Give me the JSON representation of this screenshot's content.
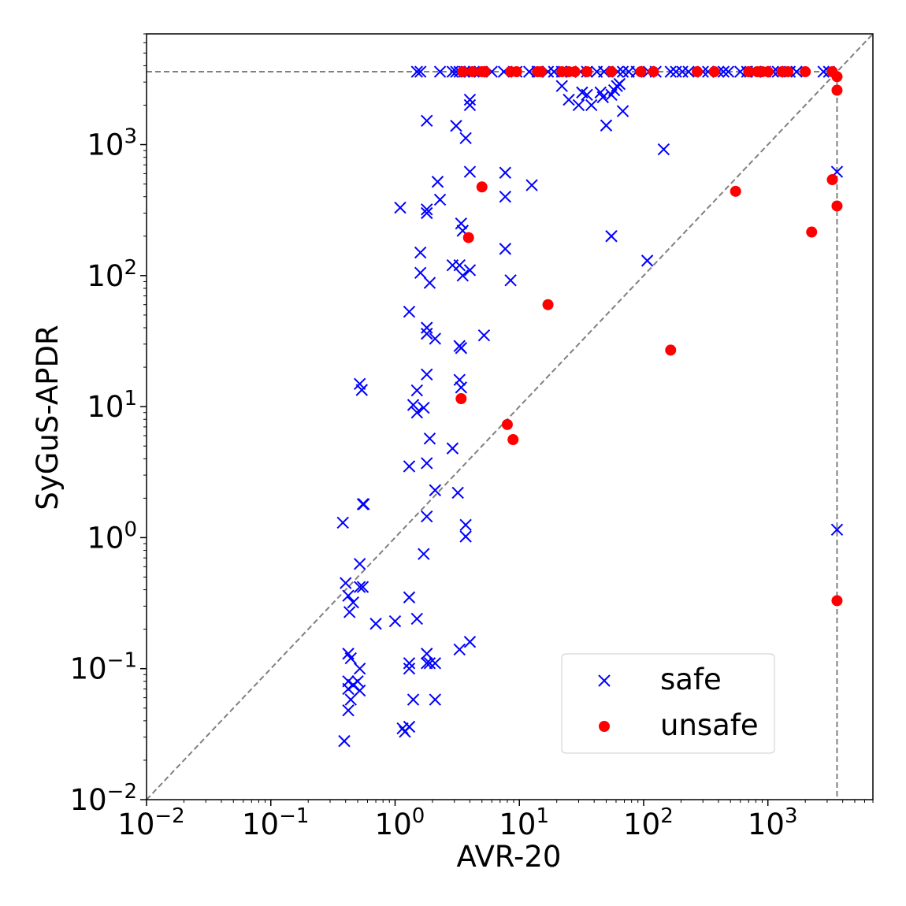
{
  "chart_data": {
    "type": "scatter",
    "xlabel": "AVR-20",
    "ylabel": "SyGuS-APDR",
    "xscale": "log",
    "yscale": "log",
    "xlim": [
      0.01,
      7000
    ],
    "ylim": [
      0.01,
      7000
    ],
    "grid": false,
    "legend_position": "lower-right",
    "timeout_seconds": 3600,
    "x_ticks": [
      {
        "value": 0.01,
        "base": "10",
        "exp": "−2"
      },
      {
        "value": 0.1,
        "base": "10",
        "exp": "−1"
      },
      {
        "value": 1,
        "base": "10",
        "exp": "0"
      },
      {
        "value": 10,
        "base": "10",
        "exp": "1"
      },
      {
        "value": 100,
        "base": "10",
        "exp": "2"
      },
      {
        "value": 1000,
        "base": "10",
        "exp": "3"
      }
    ],
    "y_ticks": [
      {
        "value": 0.01,
        "base": "10",
        "exp": "−2"
      },
      {
        "value": 0.1,
        "base": "10",
        "exp": "−1"
      },
      {
        "value": 1,
        "base": "10",
        "exp": "0"
      },
      {
        "value": 10,
        "base": "10",
        "exp": "1"
      },
      {
        "value": 100,
        "base": "10",
        "exp": "2"
      },
      {
        "value": 1000,
        "base": "10",
        "exp": "3"
      }
    ],
    "series": [
      {
        "name": "safe",
        "marker": "x",
        "color": "#0000ff",
        "points": [
          [
            1.5,
            3600
          ],
          [
            1.6,
            3600
          ],
          [
            2.3,
            3600
          ],
          [
            2.9,
            3600
          ],
          [
            3.1,
            3600
          ],
          [
            3.3,
            3600
          ],
          [
            3.6,
            3600
          ],
          [
            4.0,
            3600
          ],
          [
            4.3,
            3600
          ],
          [
            4.8,
            3600
          ],
          [
            6.0,
            3600
          ],
          [
            7.5,
            3600
          ],
          [
            9.5,
            3600
          ],
          [
            12,
            3600
          ],
          [
            14,
            3600
          ],
          [
            17,
            3600
          ],
          [
            19,
            3600
          ],
          [
            22,
            3600
          ],
          [
            26,
            3600
          ],
          [
            31,
            3600
          ],
          [
            35,
            3600
          ],
          [
            42,
            3600
          ],
          [
            48,
            3600
          ],
          [
            62,
            3600
          ],
          [
            68,
            3600
          ],
          [
            76,
            3600
          ],
          [
            88,
            3600
          ],
          [
            110,
            3600
          ],
          [
            125,
            3600
          ],
          [
            165,
            3600
          ],
          [
            182,
            3600
          ],
          [
            205,
            3600
          ],
          [
            230,
            3600
          ],
          [
            300,
            3600
          ],
          [
            330,
            3600
          ],
          [
            400,
            3600
          ],
          [
            440,
            3600
          ],
          [
            480,
            3600
          ],
          [
            600,
            3600
          ],
          [
            680,
            3600
          ],
          [
            800,
            3600
          ],
          [
            950,
            3600
          ],
          [
            1100,
            3600
          ],
          [
            1200,
            3600
          ],
          [
            1500,
            3600
          ],
          [
            1700,
            3600
          ],
          [
            2800,
            3600
          ],
          [
            3100,
            3600
          ],
          [
            4.0,
            2200
          ],
          [
            4.0,
            2000
          ],
          [
            3.7,
            1120
          ],
          [
            3.1,
            1390
          ],
          [
            1.8,
            1520
          ],
          [
            4.0,
            620
          ],
          [
            2.2,
            520
          ],
          [
            2.3,
            380
          ],
          [
            1.1,
            330
          ],
          [
            1.8,
            320
          ],
          [
            1.8,
            300
          ],
          [
            7.7,
            610
          ],
          [
            7.7,
            400
          ],
          [
            12.6,
            490
          ],
          [
            3.4,
            250
          ],
          [
            3.5,
            220
          ],
          [
            7.7,
            160
          ],
          [
            1.6,
            150
          ],
          [
            2.9,
            120
          ],
          [
            3.3,
            120
          ],
          [
            3.5,
            100
          ],
          [
            4.0,
            110
          ],
          [
            1.6,
            105
          ],
          [
            1.9,
            88
          ],
          [
            8.5,
            92
          ],
          [
            1.3,
            53
          ],
          [
            1.8,
            40
          ],
          [
            1.8,
            36
          ],
          [
            2.1,
            33
          ],
          [
            3.3,
            29
          ],
          [
            3.4,
            28
          ],
          [
            5.2,
            35
          ],
          [
            1.8,
            17.6
          ],
          [
            3.3,
            16
          ],
          [
            3.4,
            14
          ],
          [
            1.5,
            13.3
          ],
          [
            1.4,
            10.3
          ],
          [
            1.5,
            9.0
          ],
          [
            1.7,
            9.8
          ],
          [
            0.52,
            14.9
          ],
          [
            0.54,
            13.4
          ],
          [
            2.9,
            4.8
          ],
          [
            1.9,
            5.7
          ],
          [
            1.3,
            3.5
          ],
          [
            1.8,
            3.7
          ],
          [
            2.1,
            2.3
          ],
          [
            3.2,
            2.2
          ],
          [
            0.55,
            1.8
          ],
          [
            0.56,
            1.8
          ],
          [
            0.38,
            1.3
          ],
          [
            1.8,
            1.45
          ],
          [
            3.7,
            1.25
          ],
          [
            3.7,
            1.02
          ],
          [
            1.7,
            0.75
          ],
          [
            0.52,
            0.63
          ],
          [
            0.52,
            0.42
          ],
          [
            0.55,
            0.42
          ],
          [
            0.4,
            0.45
          ],
          [
            0.42,
            0.36
          ],
          [
            0.46,
            0.32
          ],
          [
            0.43,
            0.27
          ],
          [
            0.7,
            0.22
          ],
          [
            1.0,
            0.23
          ],
          [
            1.3,
            0.35
          ],
          [
            1.5,
            0.24
          ],
          [
            1.3,
            0.11
          ],
          [
            1.3,
            0.1
          ],
          [
            1.8,
            0.13
          ],
          [
            1.8,
            0.11
          ],
          [
            1.9,
            0.11
          ],
          [
            2.1,
            0.11
          ],
          [
            3.3,
            0.14
          ],
          [
            4.0,
            0.16
          ],
          [
            0.42,
            0.13
          ],
          [
            0.44,
            0.12
          ],
          [
            0.52,
            0.1
          ],
          [
            0.42,
            0.08
          ],
          [
            0.46,
            0.075
          ],
          [
            0.42,
            0.07
          ],
          [
            0.5,
            0.08
          ],
          [
            0.52,
            0.068
          ],
          [
            0.44,
            0.058
          ],
          [
            0.42,
            0.048
          ],
          [
            1.4,
            0.058
          ],
          [
            2.1,
            0.058
          ],
          [
            1.15,
            0.035
          ],
          [
            1.2,
            0.033
          ],
          [
            1.3,
            0.036
          ],
          [
            0.39,
            0.028
          ],
          [
            22,
            2800
          ],
          [
            25,
            2200
          ],
          [
            30,
            2000
          ],
          [
            32,
            2500
          ],
          [
            35,
            2400
          ],
          [
            38,
            2000
          ],
          [
            45,
            2500
          ],
          [
            47,
            2300
          ],
          [
            50,
            1400
          ],
          [
            55,
            2400
          ],
          [
            58,
            2600
          ],
          [
            61,
            2800
          ],
          [
            64,
            2900
          ],
          [
            68,
            1800
          ],
          [
            145,
            920
          ],
          [
            55,
            200
          ],
          [
            107,
            130
          ],
          [
            3600,
            620
          ],
          [
            3600,
            1.15
          ]
        ]
      },
      {
        "name": "unsafe",
        "marker": "o",
        "color": "#ff0000",
        "points": [
          [
            3.5,
            3600
          ],
          [
            4.2,
            3600
          ],
          [
            5.0,
            3600
          ],
          [
            5.3,
            3600
          ],
          [
            8.5,
            3600
          ],
          [
            9.5,
            3600
          ],
          [
            14,
            3600
          ],
          [
            15,
            3600
          ],
          [
            22,
            3600
          ],
          [
            25,
            3600
          ],
          [
            28,
            3600
          ],
          [
            35,
            3600
          ],
          [
            55,
            3600
          ],
          [
            95,
            3600
          ],
          [
            120,
            3600
          ],
          [
            270,
            3600
          ],
          [
            370,
            3600
          ],
          [
            700,
            3600
          ],
          [
            820,
            3600
          ],
          [
            900,
            3600
          ],
          [
            1000,
            3600
          ],
          [
            1300,
            3600
          ],
          [
            1450,
            3600
          ],
          [
            2000,
            3600
          ],
          [
            3300,
            3600
          ],
          [
            3600,
            3300
          ],
          [
            3600,
            2600
          ],
          [
            3300,
            540
          ],
          [
            3600,
            340
          ],
          [
            2250,
            215
          ],
          [
            550,
            440
          ],
          [
            165,
            27
          ],
          [
            17,
            60
          ],
          [
            5.0,
            475
          ],
          [
            3.9,
            195
          ],
          [
            3.4,
            11.5
          ],
          [
            8.0,
            7.3
          ],
          [
            8.9,
            5.6
          ],
          [
            3600,
            0.33
          ]
        ]
      }
    ]
  }
}
